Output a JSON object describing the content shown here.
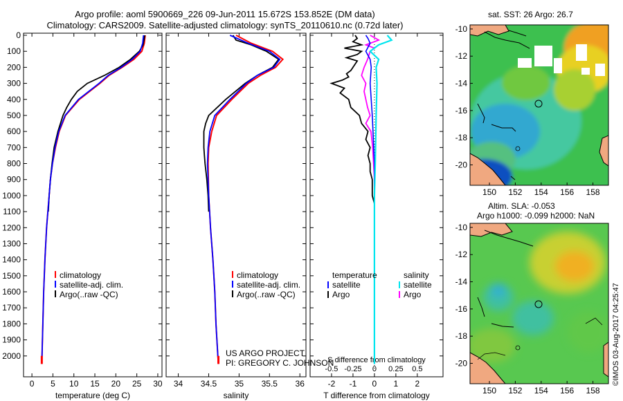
{
  "title_line1": "Argo profile: aoml 5900669_226 09-Jun-2011 15.672S 153.852E (DM data)",
  "title_line2": "Climatology: CARS2009. Satellite-adjusted climatology: synTS_20110610.nc (0.72d later)",
  "map_top_title": "sat. SST: 26 Argo: 26.7",
  "map_bottom_title1": "Altim. SLA: -0.053",
  "map_bottom_title2": "Argo h1000: -0.099 h2000: NaN",
  "footer_rotated": "©IMOS 03-Aug-2017 04:25:47",
  "project_text1": "US ARGO PROJECT",
  "project_text2": "PI: GREGORY C. JOHNSON",
  "colors": {
    "clim": "#ff0000",
    "sat": "#0000ff",
    "argo": "#000000",
    "sat_s": "#00e5ee",
    "argo_s": "#ff00ff"
  },
  "chart_data": [
    {
      "type": "line",
      "name": "temperature",
      "xlabel": "temperature (deg C)",
      "ylabel": "depth",
      "xlim": [
        -2,
        31
      ],
      "ylim": [
        0,
        2100
      ],
      "xticks": [
        0,
        5,
        10,
        15,
        20,
        25,
        30
      ],
      "yticks": [
        0,
        100,
        200,
        300,
        400,
        500,
        600,
        700,
        800,
        900,
        1000,
        1100,
        1200,
        1300,
        1400,
        1500,
        1600,
        1700,
        1800,
        1900,
        2000
      ],
      "legend": [
        "climatology",
        "satellite-adj. clim.",
        "Argo(..raw -QC)"
      ],
      "series": [
        {
          "name": "climatology",
          "depth": [
            0,
            50,
            100,
            150,
            200,
            250,
            300,
            400,
            500,
            600,
            700,
            800,
            900,
            1000,
            1200,
            1400,
            1600,
            1800,
            2000,
            2050
          ],
          "values": [
            27,
            26.8,
            26.2,
            24.3,
            21.5,
            18.4,
            16.2,
            11.3,
            8.0,
            6.5,
            5.6,
            4.9,
            4.4,
            4.1,
            3.5,
            3.1,
            2.8,
            2.6,
            2.4,
            2.35
          ]
        },
        {
          "name": "satellite-adj. clim.",
          "depth": [
            0,
            50,
            100,
            150,
            200,
            250,
            300,
            400,
            500,
            600,
            700,
            800,
            900,
            1000,
            1200,
            1400,
            1600,
            1800,
            2000,
            2050
          ],
          "values": [
            26.6,
            26.4,
            25.8,
            23.9,
            21.3,
            18.2,
            16.0,
            11.1,
            7.9,
            6.4,
            5.5,
            4.9,
            4.4,
            4.1,
            3.5,
            3.1,
            2.8,
            2.6,
            2.4,
            2.35
          ]
        },
        {
          "name": "Argo(..raw -QC)",
          "depth": [
            0,
            60,
            100,
            150,
            200,
            250,
            300,
            350,
            400,
            450,
            500,
            600,
            700,
            800,
            900,
            1000,
            1100
          ],
          "values": [
            26.9,
            26.5,
            25.6,
            23.5,
            20.8,
            17.3,
            13.2,
            10.8,
            9.4,
            8.3,
            7.4,
            6.2,
            5.3,
            4.8,
            4.4,
            4.1,
            3.9
          ]
        }
      ]
    },
    {
      "type": "line",
      "name": "salinity",
      "xlabel": "salinity",
      "ylabel": "depth",
      "xlim": [
        33.8,
        36.1
      ],
      "ylim": [
        0,
        2100
      ],
      "xticks": [
        34,
        34.5,
        35,
        35.5,
        36
      ],
      "legend": [
        "climatology",
        "satellite-adj. clim.",
        "Argo(..raw -QC)"
      ],
      "series": [
        {
          "name": "climatology",
          "depth": [
            0,
            50,
            100,
            150,
            200,
            250,
            300,
            400,
            500,
            600,
            700,
            800,
            1000,
            1200,
            1400,
            1600,
            1800,
            2000,
            2050
          ],
          "values": [
            34.95,
            35.2,
            35.55,
            35.72,
            35.6,
            35.35,
            35.15,
            34.88,
            34.63,
            34.55,
            34.5,
            34.49,
            34.5,
            34.53,
            34.57,
            34.6,
            34.62,
            34.65,
            34.66
          ]
        },
        {
          "name": "satellite-adj. clim.",
          "depth": [
            0,
            50,
            100,
            150,
            200,
            250,
            300,
            400,
            500,
            600,
            700,
            800,
            1000,
            1200,
            1400,
            1600,
            1800,
            2000,
            2050
          ],
          "values": [
            34.85,
            35.15,
            35.5,
            35.67,
            35.57,
            35.3,
            35.12,
            34.85,
            34.6,
            34.52,
            34.49,
            34.48,
            34.5,
            34.53,
            34.57,
            34.6,
            34.62,
            34.65,
            34.66
          ]
        },
        {
          "name": "Argo(..raw -QC)",
          "depth": [
            0,
            30,
            60,
            100,
            150,
            200,
            250,
            300,
            400,
            500,
            550,
            600,
            650,
            700,
            750,
            800,
            900,
            1000,
            1100
          ],
          "values": [
            34.9,
            34.95,
            35.2,
            35.45,
            35.65,
            35.55,
            35.3,
            35.1,
            34.78,
            34.5,
            34.45,
            34.42,
            34.42,
            34.42,
            34.43,
            34.44,
            34.47,
            34.49,
            34.5
          ]
        }
      ]
    },
    {
      "type": "line",
      "name": "differences",
      "xlabel": "T difference from climatology",
      "xlabel_top": "S difference from climatology",
      "xlim": [
        -3,
        3.2
      ],
      "ylim": [
        0,
        2100
      ],
      "xticks": [
        -2,
        -1,
        0,
        1,
        2
      ],
      "xticks_s": [
        -0.5,
        -0.25,
        0,
        0.25,
        0.5
      ],
      "legend_titles": [
        "temperature",
        "salinity"
      ],
      "legend": [
        "satellite",
        "Argo",
        "satellite",
        "Argo"
      ],
      "series": [
        {
          "name": "T satellite",
          "depth": [
            0,
            20,
            50,
            100,
            150,
            200,
            300,
            500,
            800,
            1000,
            1500,
            2050
          ],
          "values": [
            -0.4,
            -0.3,
            -0.2,
            -0.4,
            -0.2,
            -0.15,
            -0.2,
            -0.1,
            0,
            0,
            0,
            0
          ]
        },
        {
          "name": "T Argo",
          "depth": [
            0,
            20,
            40,
            60,
            80,
            100,
            120,
            140,
            160,
            180,
            200,
            220,
            240,
            260,
            280,
            300,
            330,
            360,
            400,
            450,
            500,
            550,
            600,
            650,
            700,
            750,
            800,
            850,
            900,
            950,
            1000,
            1050,
            1100
          ],
          "values": [
            -0.9,
            -0.8,
            -1.0,
            -0.6,
            -1.4,
            -0.6,
            -0.8,
            -1.3,
            -0.8,
            -0.9,
            -1.0,
            -1.1,
            -1.3,
            -1.2,
            -1.5,
            -2.0,
            -1.4,
            -1.6,
            -1.2,
            -1.1,
            -0.7,
            -0.6,
            -0.3,
            -0.4,
            -0.2,
            -0.3,
            -0.2,
            -0.2,
            -0.1,
            -0.1,
            -0.1,
            0,
            0
          ]
        },
        {
          "name": "S satellite",
          "depth": [
            0,
            30,
            60,
            100,
            150,
            200,
            300,
            500,
            800,
            1000,
            1500,
            2050
          ],
          "values": [
            0.15,
            0.2,
            0.05,
            -0.05,
            0.05,
            0.02,
            0.03,
            0.02,
            0.01,
            0,
            0,
            0
          ]
        },
        {
          "name": "S Argo",
          "depth": [
            0,
            30,
            60,
            80,
            100,
            150,
            200,
            250,
            300,
            350,
            400,
            450,
            500,
            550,
            600,
            700,
            800,
            900,
            1000,
            1100
          ],
          "values": [
            -0.05,
            0.05,
            -0.1,
            0.0,
            -0.05,
            -0.08,
            -0.12,
            -0.15,
            -0.1,
            -0.12,
            -0.1,
            -0.08,
            -0.05,
            -0.1,
            -0.04,
            -0.02,
            -0.01,
            0,
            0,
            0
          ]
        }
      ]
    },
    {
      "type": "heatmap",
      "name": "sst map",
      "title": "sat. SST: 26 Argo: 26.7",
      "xlim": [
        148.5,
        159.2
      ],
      "ylim": [
        -21.5,
        -9.7
      ],
      "xticks": [
        150,
        152,
        154,
        156,
        158
      ],
      "yticks": [
        -10,
        -12,
        -14,
        -16,
        -18,
        -20
      ],
      "argo_position": {
        "lon": 153.852,
        "lat": -15.672
      }
    },
    {
      "type": "heatmap",
      "name": "sla map",
      "title": "Altim. SLA: -0.053",
      "xlim": [
        148.5,
        159.2
      ],
      "ylim": [
        -21.5,
        -9.7
      ],
      "xticks": [
        150,
        152,
        154,
        156,
        158
      ],
      "yticks": [
        -10,
        -12,
        -14,
        -16,
        -18,
        -20
      ],
      "argo_position": {
        "lon": 153.852,
        "lat": -15.672
      }
    }
  ]
}
